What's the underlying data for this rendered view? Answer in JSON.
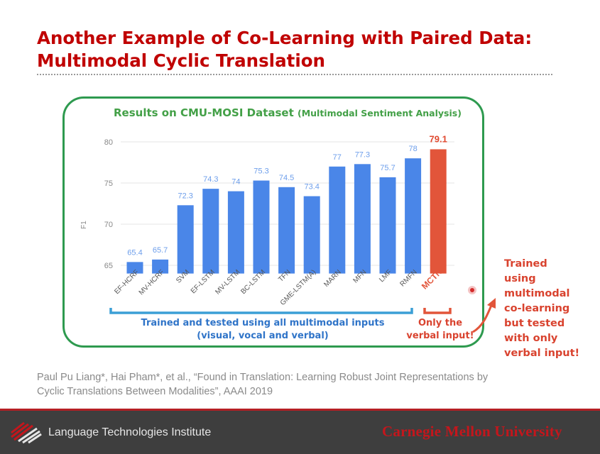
{
  "slide": {
    "title_line1": "Another Example of Co-Learning with Paired Data:",
    "title_line2": "Multimodal Cyclic Translation"
  },
  "chart_data": {
    "type": "bar",
    "title": "Results on CMU-MOSI Dataset",
    "subtitle": "(Multimodal Sentiment Analysis)",
    "ylabel": "F1",
    "ylim": [
      64,
      80
    ],
    "yticks": [
      65,
      70,
      75,
      80
    ],
    "categories": [
      "EF-HCRF",
      "MV-HCRF",
      "SVM",
      "EF-LSTM",
      "MV-LSTM",
      "BC-LSTM",
      "TFN",
      "GME-LSTM(A)",
      "MARN",
      "MFN",
      "LMF",
      "RMFN",
      "MCTN"
    ],
    "values": [
      65.4,
      65.7,
      72.3,
      74.3,
      74,
      75.3,
      74.5,
      73.4,
      77,
      77.3,
      75.7,
      78,
      79.1
    ],
    "colors": {
      "baseline": "#4a86e8",
      "highlight": "#e2553a",
      "label_baseline": "#6d9eeb",
      "label_highlight": "#e0492f",
      "axis_text": "#888888"
    },
    "highlight_category": "MCTN"
  },
  "annotations": {
    "blue_line1": "Trained and tested using all multimodal inputs",
    "blue_line2": "(visual, vocal and verbal)",
    "red_line1": "Only  the",
    "red_line2": "verbal input!",
    "side_note_lines": [
      "Trained",
      "using",
      "multimodal",
      "co-learning",
      "but tested",
      "with only",
      "verbal input!"
    ]
  },
  "citation": {
    "line1": "Paul Pu Liang*, Hai Pham*, et al., “Found in Translation: Learning Robust Joint Representations by",
    "line2": "Cyclic Translations Between Modalities”, AAAI 2019"
  },
  "footer": {
    "institute": "Language Technologies Institute",
    "university": "Carnegie Mellon University"
  },
  "icons": {
    "lti_logo": "lti-logo-icon",
    "arrow": "curved-arrow-icon",
    "pointer": "cursor-dot-icon"
  }
}
